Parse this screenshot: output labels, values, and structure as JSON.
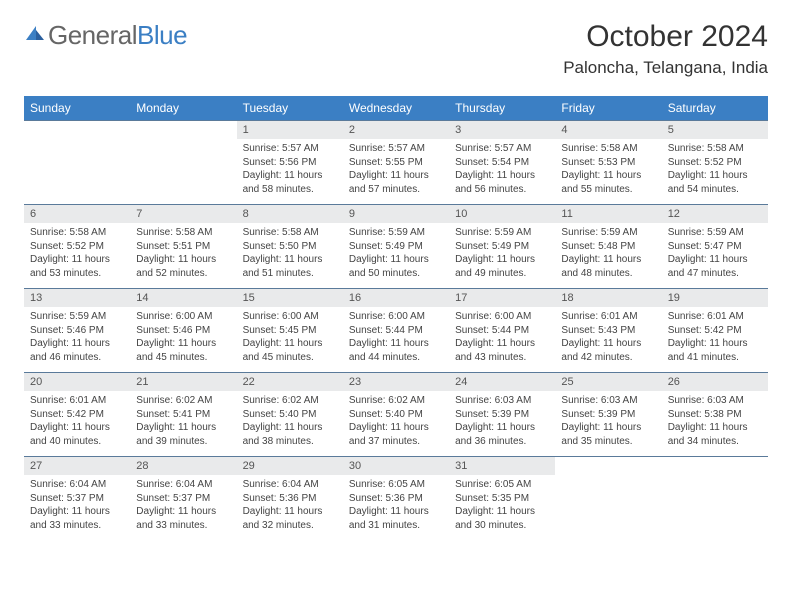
{
  "brand": {
    "part1": "General",
    "part2": "Blue"
  },
  "title": "October 2024",
  "location": "Paloncha, Telangana, India",
  "colors": {
    "header_bg": "#3b7fc4",
    "header_text": "#ffffff",
    "daynum_bg": "#e9eaeb",
    "cell_border_top": "#5a7a9a",
    "body_text": "#444444",
    "title_text": "#333333",
    "logo_gray": "#666666",
    "logo_blue": "#3b7fc4"
  },
  "typography": {
    "title_fontsize": 30,
    "location_fontsize": 17,
    "weekday_fontsize": 12,
    "daynum_fontsize": 11,
    "detail_fontsize": 10
  },
  "weekdays": [
    "Sunday",
    "Monday",
    "Tuesday",
    "Wednesday",
    "Thursday",
    "Friday",
    "Saturday"
  ],
  "weeks": [
    [
      null,
      null,
      {
        "n": "1",
        "sr": "5:57 AM",
        "ss": "5:56 PM",
        "dl": "11 hours and 58 minutes."
      },
      {
        "n": "2",
        "sr": "5:57 AM",
        "ss": "5:55 PM",
        "dl": "11 hours and 57 minutes."
      },
      {
        "n": "3",
        "sr": "5:57 AM",
        "ss": "5:54 PM",
        "dl": "11 hours and 56 minutes."
      },
      {
        "n": "4",
        "sr": "5:58 AM",
        "ss": "5:53 PM",
        "dl": "11 hours and 55 minutes."
      },
      {
        "n": "5",
        "sr": "5:58 AM",
        "ss": "5:52 PM",
        "dl": "11 hours and 54 minutes."
      }
    ],
    [
      {
        "n": "6",
        "sr": "5:58 AM",
        "ss": "5:52 PM",
        "dl": "11 hours and 53 minutes."
      },
      {
        "n": "7",
        "sr": "5:58 AM",
        "ss": "5:51 PM",
        "dl": "11 hours and 52 minutes."
      },
      {
        "n": "8",
        "sr": "5:58 AM",
        "ss": "5:50 PM",
        "dl": "11 hours and 51 minutes."
      },
      {
        "n": "9",
        "sr": "5:59 AM",
        "ss": "5:49 PM",
        "dl": "11 hours and 50 minutes."
      },
      {
        "n": "10",
        "sr": "5:59 AM",
        "ss": "5:49 PM",
        "dl": "11 hours and 49 minutes."
      },
      {
        "n": "11",
        "sr": "5:59 AM",
        "ss": "5:48 PM",
        "dl": "11 hours and 48 minutes."
      },
      {
        "n": "12",
        "sr": "5:59 AM",
        "ss": "5:47 PM",
        "dl": "11 hours and 47 minutes."
      }
    ],
    [
      {
        "n": "13",
        "sr": "5:59 AM",
        "ss": "5:46 PM",
        "dl": "11 hours and 46 minutes."
      },
      {
        "n": "14",
        "sr": "6:00 AM",
        "ss": "5:46 PM",
        "dl": "11 hours and 45 minutes."
      },
      {
        "n": "15",
        "sr": "6:00 AM",
        "ss": "5:45 PM",
        "dl": "11 hours and 45 minutes."
      },
      {
        "n": "16",
        "sr": "6:00 AM",
        "ss": "5:44 PM",
        "dl": "11 hours and 44 minutes."
      },
      {
        "n": "17",
        "sr": "6:00 AM",
        "ss": "5:44 PM",
        "dl": "11 hours and 43 minutes."
      },
      {
        "n": "18",
        "sr": "6:01 AM",
        "ss": "5:43 PM",
        "dl": "11 hours and 42 minutes."
      },
      {
        "n": "19",
        "sr": "6:01 AM",
        "ss": "5:42 PM",
        "dl": "11 hours and 41 minutes."
      }
    ],
    [
      {
        "n": "20",
        "sr": "6:01 AM",
        "ss": "5:42 PM",
        "dl": "11 hours and 40 minutes."
      },
      {
        "n": "21",
        "sr": "6:02 AM",
        "ss": "5:41 PM",
        "dl": "11 hours and 39 minutes."
      },
      {
        "n": "22",
        "sr": "6:02 AM",
        "ss": "5:40 PM",
        "dl": "11 hours and 38 minutes."
      },
      {
        "n": "23",
        "sr": "6:02 AM",
        "ss": "5:40 PM",
        "dl": "11 hours and 37 minutes."
      },
      {
        "n": "24",
        "sr": "6:03 AM",
        "ss": "5:39 PM",
        "dl": "11 hours and 36 minutes."
      },
      {
        "n": "25",
        "sr": "6:03 AM",
        "ss": "5:39 PM",
        "dl": "11 hours and 35 minutes."
      },
      {
        "n": "26",
        "sr": "6:03 AM",
        "ss": "5:38 PM",
        "dl": "11 hours and 34 minutes."
      }
    ],
    [
      {
        "n": "27",
        "sr": "6:04 AM",
        "ss": "5:37 PM",
        "dl": "11 hours and 33 minutes."
      },
      {
        "n": "28",
        "sr": "6:04 AM",
        "ss": "5:37 PM",
        "dl": "11 hours and 33 minutes."
      },
      {
        "n": "29",
        "sr": "6:04 AM",
        "ss": "5:36 PM",
        "dl": "11 hours and 32 minutes."
      },
      {
        "n": "30",
        "sr": "6:05 AM",
        "ss": "5:36 PM",
        "dl": "11 hours and 31 minutes."
      },
      {
        "n": "31",
        "sr": "6:05 AM",
        "ss": "5:35 PM",
        "dl": "11 hours and 30 minutes."
      },
      null,
      null
    ]
  ],
  "labels": {
    "sunrise": "Sunrise:",
    "sunset": "Sunset:",
    "daylight": "Daylight:"
  }
}
